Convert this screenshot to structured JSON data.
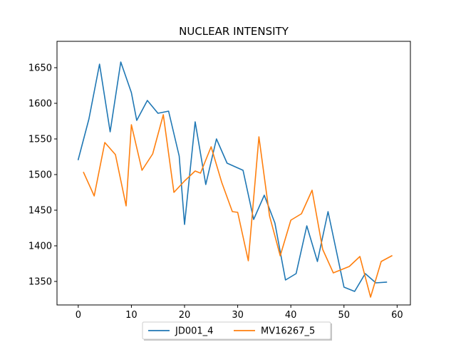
{
  "chart_data": {
    "type": "line",
    "title": "NUCLEAR INTENSITY",
    "xlabel": "",
    "ylabel": "",
    "xlim": [
      -4,
      62.5
    ],
    "ylim": [
      1317,
      1687
    ],
    "x_ticks": [
      0,
      10,
      20,
      30,
      40,
      50,
      60
    ],
    "y_ticks": [
      1350,
      1400,
      1450,
      1500,
      1550,
      1600,
      1650
    ],
    "grid": false,
    "legend_position": "bottom-center",
    "series": [
      {
        "name": "JD001_4",
        "color": "#1f77b4",
        "x": [
          0,
          2,
          4,
          6,
          8,
          10,
          11,
          13,
          15,
          17,
          19,
          20,
          22,
          24,
          26,
          28,
          31,
          33,
          35,
          37,
          39,
          41,
          43,
          45,
          47,
          50,
          52,
          54,
          56,
          58
        ],
        "y": [
          1521,
          1578,
          1655,
          1560,
          1658,
          1615,
          1576,
          1604,
          1586,
          1589,
          1526,
          1430,
          1574,
          1486,
          1550,
          1516,
          1506,
          1437,
          1471,
          1432,
          1352,
          1361,
          1428,
          1378,
          1448,
          1342,
          1336,
          1361,
          1348,
          1349
        ]
      },
      {
        "name": "MV16267_5",
        "color": "#ff7f0e",
        "x": [
          1,
          3,
          5,
          7,
          9,
          10,
          12,
          14,
          16,
          18,
          20,
          22,
          23,
          25,
          27,
          29,
          30,
          32,
          34,
          36,
          38,
          40,
          42,
          44,
          46,
          48,
          51,
          53,
          55,
          57,
          59
        ],
        "y": [
          1503,
          1470,
          1545,
          1528,
          1456,
          1570,
          1506,
          1529,
          1584,
          1475,
          1491,
          1505,
          1502,
          1539,
          1489,
          1448,
          1447,
          1379,
          1553,
          1442,
          1386,
          1436,
          1445,
          1478,
          1395,
          1362,
          1371,
          1385,
          1328,
          1378,
          1386
        ]
      }
    ]
  }
}
